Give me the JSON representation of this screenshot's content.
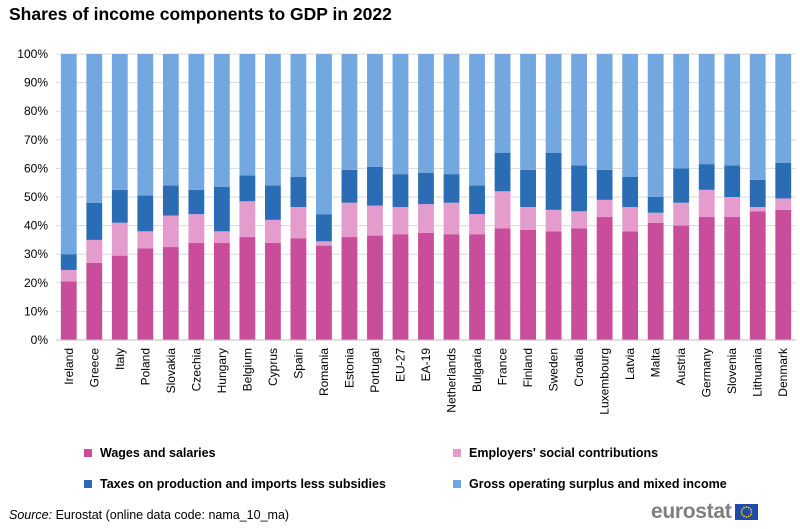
{
  "title": "Shares of income components to GDP in 2022",
  "chart_data": {
    "type": "bar",
    "stacked": true,
    "percent": true,
    "title": "Shares of income components to GDP in 2022",
    "ylim": [
      0,
      100
    ],
    "yticks": [
      "0%",
      "10%",
      "20%",
      "30%",
      "40%",
      "50%",
      "60%",
      "70%",
      "80%",
      "90%",
      "100%"
    ],
    "categories": [
      "Ireland",
      "Greece",
      "Italy",
      "Poland",
      "Slovakia",
      "Czechia",
      "Hungary",
      "Belgium",
      "Cyprus",
      "Spain",
      "Romania",
      "Estonia",
      "Portugal",
      "EU-27",
      "EA-19",
      "Netherlands",
      "Bulgaria",
      "France",
      "Finland",
      "Sweden",
      "Croatia",
      "Luxembourg",
      "Latvia",
      "Malta",
      "Austria",
      "Germany",
      "Slovenia",
      "Lithuania",
      "Denmark"
    ],
    "series": [
      {
        "name": "Wages and salaries",
        "color": "#c94d9a",
        "values": [
          20.5,
          27,
          29.5,
          32,
          32.5,
          34,
          34,
          36,
          34,
          35.5,
          33,
          36,
          36.5,
          37,
          37.5,
          37,
          37,
          39,
          38.5,
          38,
          39,
          43,
          38,
          41,
          40,
          43,
          43,
          45,
          45.5
        ]
      },
      {
        "name": "Employers' social contributions",
        "color": "#e39ccb",
        "values": [
          4,
          8,
          11.5,
          6,
          11,
          10,
          4,
          12.5,
          8,
          11,
          1.5,
          12,
          10.5,
          9.5,
          10,
          11,
          7,
          13,
          8,
          7.5,
          6,
          6,
          8.5,
          3.5,
          8,
          9.5,
          7,
          1.5,
          4
        ]
      },
      {
        "name": "Taxes on production and imports less subsidies",
        "color": "#2a6db5",
        "values": [
          5.5,
          13,
          11.5,
          12.5,
          10.5,
          8.5,
          15.5,
          9,
          12,
          10.5,
          9.5,
          11.5,
          13.5,
          11.5,
          11,
          10,
          10,
          13.5,
          13,
          20,
          16,
          10.5,
          10.5,
          5.5,
          12,
          9,
          11,
          9.5,
          12.5
        ]
      },
      {
        "name": "Gross operating surplus and mixed income",
        "color": "#72a8df",
        "values": [
          70,
          52,
          47.5,
          49.5,
          46,
          47.5,
          46.5,
          42.5,
          46,
          43,
          56,
          40.5,
          39.5,
          42,
          41.5,
          42,
          46,
          34.5,
          40.5,
          34.5,
          39,
          40.5,
          43,
          50,
          40,
          38.5,
          39,
          44,
          38
        ]
      }
    ]
  },
  "legend": {
    "items": [
      {
        "label": "Wages and salaries",
        "color": "#c94d9a"
      },
      {
        "label": "Employers' social contributions",
        "color": "#e39ccb"
      },
      {
        "label": "Taxes on production and imports less subsidies",
        "color": "#2a6db5"
      },
      {
        "label": "Gross operating surplus and mixed income",
        "color": "#72a8df"
      }
    ]
  },
  "source": {
    "label": "Source:",
    "text": "Eurostat (online data code: nama_10_ma)"
  },
  "logo": {
    "text": "eurostat"
  }
}
